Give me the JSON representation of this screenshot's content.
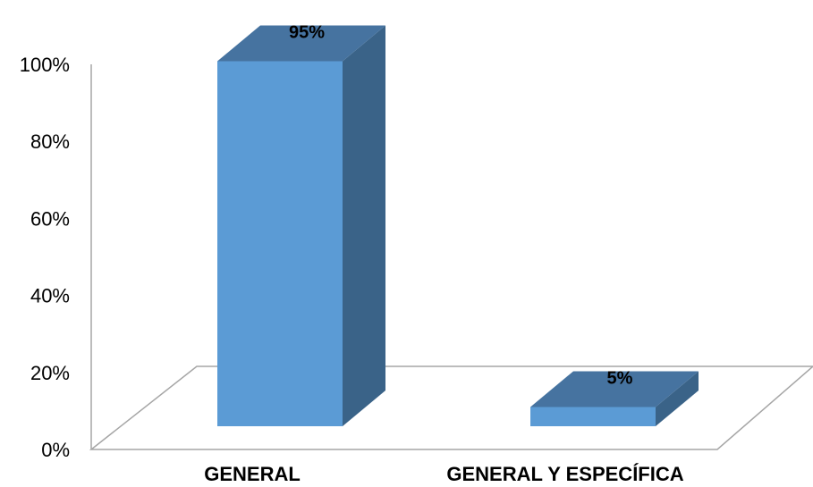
{
  "chart_data": {
    "type": "bar",
    "categories": [
      "GENERAL",
      "GENERAL Y ESPECÍFICA"
    ],
    "values": [
      95,
      5
    ],
    "data_labels": [
      "95%",
      "5%"
    ],
    "ylim": [
      0,
      100
    ],
    "yticks": [
      "0%",
      "20%",
      "40%",
      "60%",
      "80%",
      "100%"
    ],
    "grid": false,
    "three_d": true,
    "colors": {
      "front": "#5b9bd5",
      "side": "#3a6388",
      "top": "#4673a0",
      "axis": "#a6a6a6"
    }
  }
}
